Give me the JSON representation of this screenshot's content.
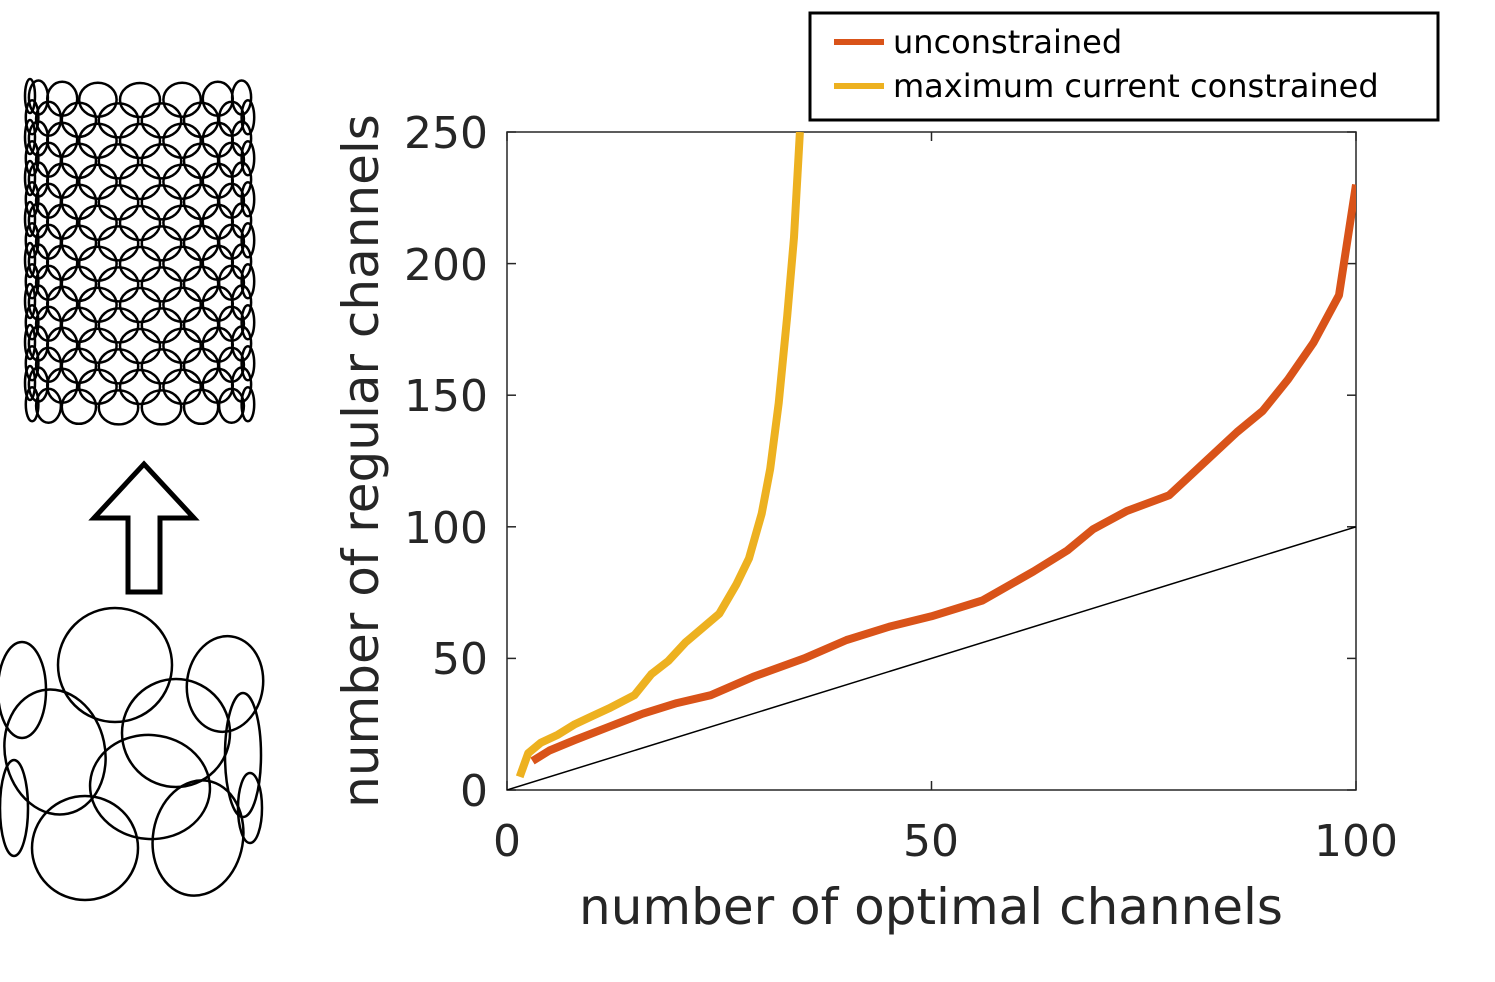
{
  "chart_data": {
    "type": "line",
    "title": "",
    "xlabel": "number of optimal channels",
    "ylabel": "number of regular  channels",
    "xlim": [
      0,
      100
    ],
    "ylim": [
      0,
      250
    ],
    "x_ticks": [
      "0",
      "50",
      "100"
    ],
    "y_ticks": [
      "0",
      "50",
      "100",
      "150",
      "200",
      "250"
    ],
    "grid": false,
    "legend_position": "top-right, outside plot",
    "series": [
      {
        "name": "unconstrained",
        "color": "#d95319",
        "x": [
          3,
          5,
          8,
          12,
          16,
          20,
          24,
          29,
          35,
          40,
          45,
          50,
          56,
          62,
          66,
          69,
          73,
          78,
          82,
          86,
          89,
          92,
          95,
          98,
          100
        ],
        "y": [
          11,
          15,
          19,
          24,
          29,
          33,
          36,
          43,
          50,
          57,
          62,
          66,
          72,
          83,
          91,
          99,
          106,
          112,
          124,
          136,
          144,
          156,
          170,
          188,
          230
        ]
      },
      {
        "name": "maximum current constrained",
        "color": "#edb120",
        "x": [
          1.5,
          2.5,
          4,
          6,
          8,
          10,
          12,
          15,
          17,
          19,
          21,
          25,
          27,
          28.5,
          30,
          31,
          32,
          33,
          33.8,
          34.5
        ],
        "y": [
          5,
          14,
          18,
          21,
          25,
          28,
          31,
          36,
          44,
          49,
          56,
          67,
          78,
          88,
          105,
          122,
          147,
          180,
          210,
          250
        ]
      },
      {
        "name": "",
        "color": "#000000",
        "x": [
          0,
          100
        ],
        "y": [
          0,
          100
        ]
      }
    ]
  }
}
